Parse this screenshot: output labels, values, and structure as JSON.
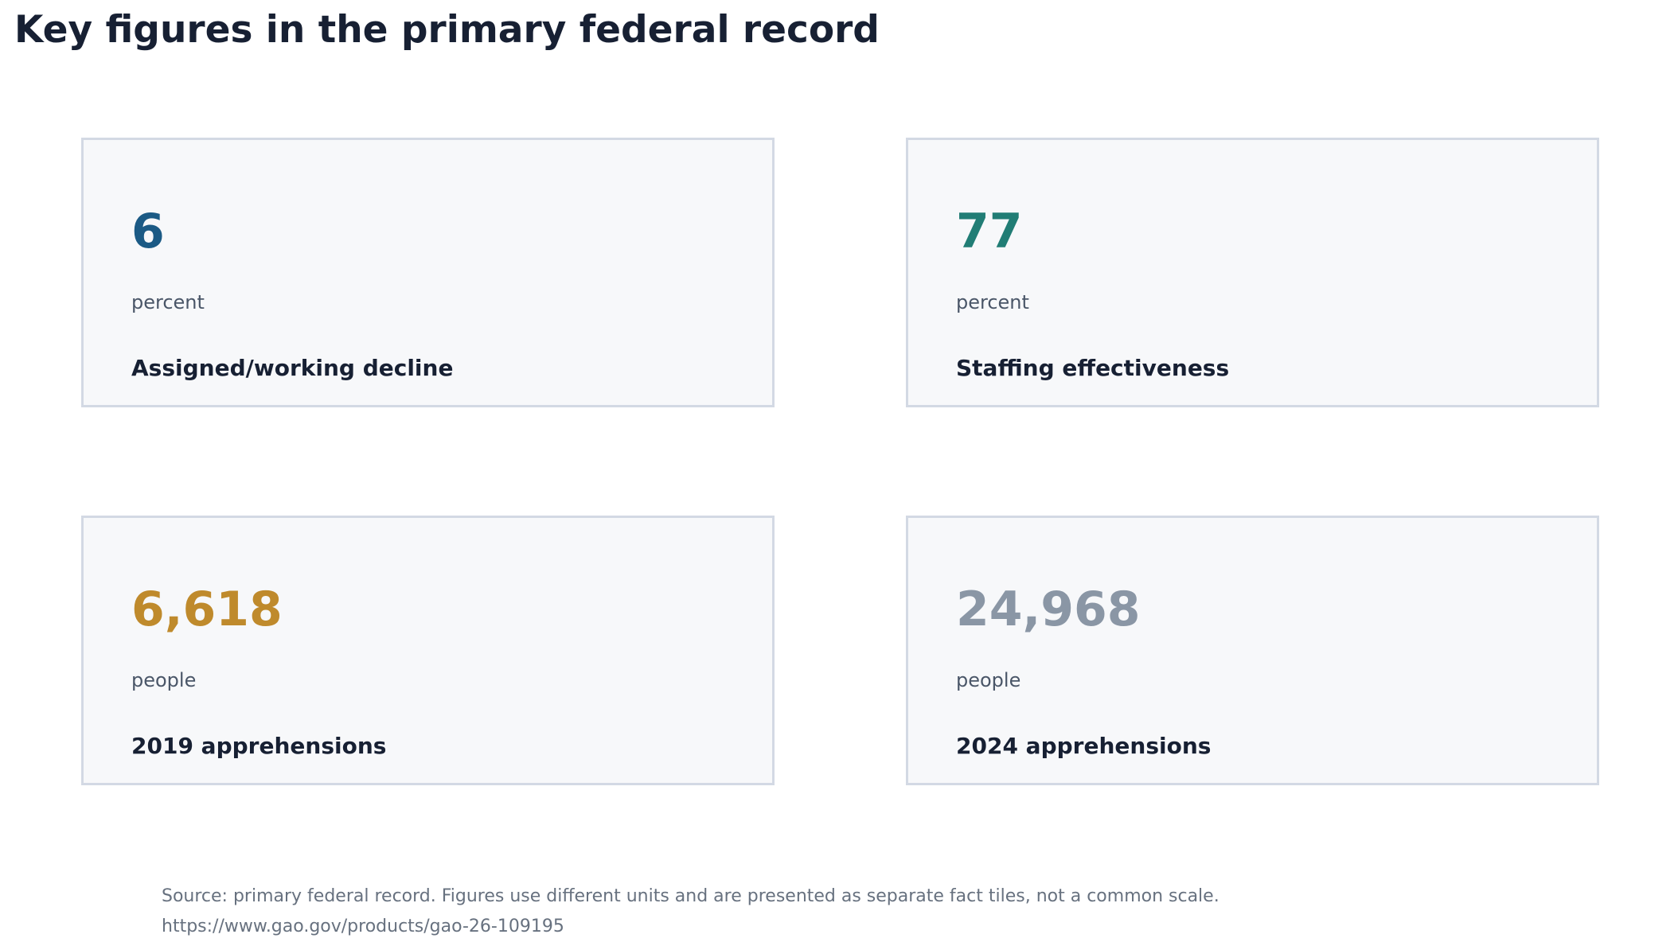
{
  "title": "Key figures in the primary federal record",
  "chart_data": {
    "type": "table",
    "title": "Key figures in the primary federal record",
    "tiles": [
      {
        "value": "6",
        "unit": "percent",
        "label": "Assigned/working decline",
        "color": "#1b5a85"
      },
      {
        "value": "77",
        "unit": "percent",
        "label": "Staffing effectiveness",
        "color": "#217d75"
      },
      {
        "value": "6,618",
        "unit": "people",
        "label": "2019 apprehensions",
        "color": "#bf8a2c"
      },
      {
        "value": "24,968",
        "unit": "people",
        "label": "2024 apprehensions",
        "color": "#8a96a5"
      }
    ]
  },
  "footer": {
    "source": "Source: primary federal record. Figures use different units and are presented as separate fact tiles, not a common scale.",
    "url": "https://www.gao.gov/products/gao-26-109195"
  }
}
